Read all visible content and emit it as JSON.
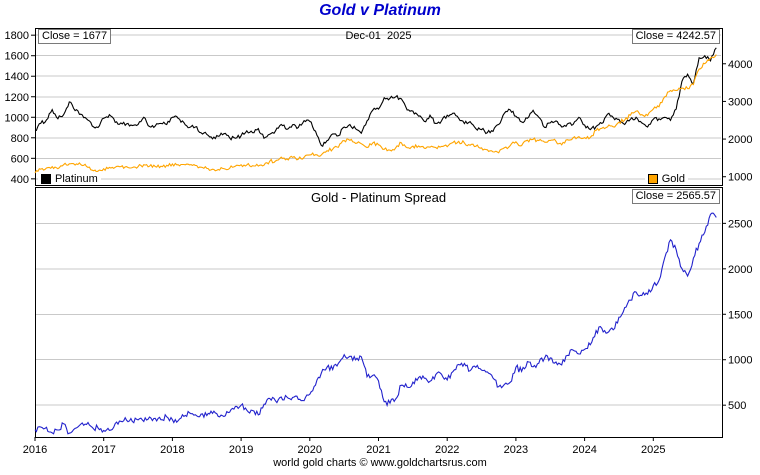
{
  "title": "Gold v Platinum",
  "caption": "world gold charts © www.goldchartsrus.com",
  "colors": {
    "title": "#0000CC",
    "platinum": "#000000",
    "gold": "#FFA500",
    "spread": "#2222CC",
    "grid": "#C9C9C9",
    "border": "#000000"
  },
  "top_panel": {
    "platinum_close_label": "Close = 1677",
    "date_label": "Dec-01  2025",
    "gold_close_label": "Close = 4242.57",
    "legend": {
      "platinum": "Platinum",
      "gold": "Gold"
    }
  },
  "bottom_panel": {
    "title": "Gold - Platinum Spread",
    "close_label": "Close = 2565.57"
  },
  "chart_data": [
    {
      "type": "line",
      "panel": "top",
      "title": "Gold v Platinum",
      "x_start": "2016-01",
      "x_interval": "monthly-approx",
      "x_range": [
        2016,
        2026
      ],
      "x_ticks": [
        2016,
        2017,
        2018,
        2019,
        2020,
        2021,
        2022,
        2023,
        2024,
        2025
      ],
      "left_axis": {
        "ticks": [
          400,
          600,
          800,
          1000,
          1200,
          1400,
          1600,
          1800
        ],
        "range": [
          340,
          1870
        ]
      },
      "right_axis": {
        "ticks": [
          1000,
          2000,
          3000,
          4000
        ],
        "range": [
          780,
          4950
        ]
      },
      "annotation_date": "Dec-01  2025",
      "series": [
        {
          "name": "Platinum",
          "axis": "left",
          "color": "#000000",
          "close": 1677,
          "values": [
            870,
            940,
            975,
            1075,
            985,
            1025,
            1150,
            1065,
            1030,
            985,
            915,
            900,
            990,
            1025,
            950,
            945,
            935,
            920,
            930,
            1000,
            910,
            915,
            940,
            930,
            1000,
            990,
            948,
            900,
            905,
            850,
            833,
            790,
            815,
            840,
            800,
            795,
            820,
            868,
            850,
            890,
            795,
            835,
            865,
            930,
            882,
            928,
            900,
            968,
            960,
            865,
            725,
            772,
            838,
            820,
            905,
            930,
            888,
            845,
            965,
            1070,
            1080,
            1190,
            1185,
            1200,
            1180,
            1072,
            1060,
            1010,
            960,
            1020,
            940,
            965,
            1020,
            1040,
            990,
            938,
            958,
            890,
            880,
            850,
            862,
            930,
            1040,
            1072,
            1010,
            955,
            990,
            1068,
            1000,
            902,
            945,
            965,
            905,
            935,
            930,
            1000,
            925,
            880,
            910,
            940,
            1030,
            998,
            980,
            930,
            980,
            1000,
            945,
            905,
            980,
            985,
            1000,
            970,
            1080,
            1350,
            1420,
            1330,
            1580,
            1600,
            1550,
            1677
          ]
        },
        {
          "name": "Gold",
          "axis": "right",
          "color": "#FFA500",
          "close": 4242.57,
          "values": [
            1100,
            1200,
            1232,
            1270,
            1212,
            1320,
            1342,
            1310,
            1322,
            1272,
            1172,
            1150,
            1212,
            1248,
            1249,
            1268,
            1269,
            1242,
            1268,
            1320,
            1280,
            1271,
            1280,
            1302,
            1340,
            1318,
            1325,
            1315,
            1300,
            1252,
            1220,
            1200,
            1192,
            1215,
            1222,
            1282,
            1320,
            1313,
            1292,
            1283,
            1305,
            1410,
            1414,
            1520,
            1472,
            1512,
            1464,
            1517,
            1580,
            1585,
            1577,
            1690,
            1730,
            1781,
            1960,
            1968,
            1886,
            1878,
            1777,
            1898,
            1848,
            1728,
            1708,
            1768,
            1900,
            1770,
            1814,
            1815,
            1757,
            1783,
            1775,
            1806,
            1797,
            1909,
            1937,
            1897,
            1837,
            1807,
            1766,
            1716,
            1660,
            1634,
            1769,
            1824,
            1928,
            1827,
            1969,
            1990,
            1962,
            1919,
            1965,
            1940,
            1848,
            1983,
            2036,
            2063,
            2040,
            2044,
            2230,
            2286,
            2327,
            2327,
            2448,
            2503,
            2635,
            2744,
            2651,
            2625,
            2798,
            2858,
            3124,
            3289,
            3289,
            3353,
            3340,
            3448,
            3859,
            4003,
            4150,
            4242.57
          ]
        }
      ]
    },
    {
      "type": "line",
      "panel": "bottom",
      "title": "Gold - Platinum Spread",
      "x_start": "2016-01",
      "x_interval": "monthly-approx",
      "x_range": [
        2016,
        2026
      ],
      "x_ticks": [
        2016,
        2017,
        2018,
        2019,
        2020,
        2021,
        2022,
        2023,
        2024,
        2025
      ],
      "right_axis": {
        "ticks": [
          500,
          1000,
          1500,
          2000,
          2500
        ],
        "range": [
          150,
          2900
        ]
      },
      "series": [
        {
          "name": "Gold - Platinum Spread",
          "axis": "right",
          "color": "#2222CC",
          "close": 2565.57,
          "values": [
            230,
            260,
            257,
            195,
            227,
            295,
            192,
            245,
            292,
            287,
            257,
            250,
            222,
            223,
            299,
            323,
            334,
            322,
            338,
            320,
            370,
            356,
            340,
            372,
            340,
            328,
            377,
            415,
            395,
            402,
            387,
            410,
            377,
            375,
            422,
            487,
            500,
            445,
            442,
            393,
            510,
            575,
            549,
            590,
            590,
            584,
            564,
            549,
            620,
            720,
            852,
            918,
            892,
            961,
            1055,
            1038,
            998,
            1033,
            812,
            828,
            768,
            538,
            523,
            568,
            720,
            698,
            754,
            805,
            797,
            763,
            835,
            841,
            777,
            869,
            947,
            959,
            879,
            917,
            886,
            866,
            798,
            704,
            729,
            752,
            918,
            872,
            979,
            922,
            962,
            1017,
            1020,
            975,
            943,
            1048,
            1106,
            1063,
            1115,
            1164,
            1320,
            1346,
            1297,
            1329,
            1468,
            1573,
            1655,
            1744,
            1706,
            1720,
            1818,
            1873,
            2124,
            2319,
            2209,
            2003,
            1920,
            2118,
            2279,
            2403,
            2600,
            2565.57
          ]
        }
      ]
    }
  ]
}
